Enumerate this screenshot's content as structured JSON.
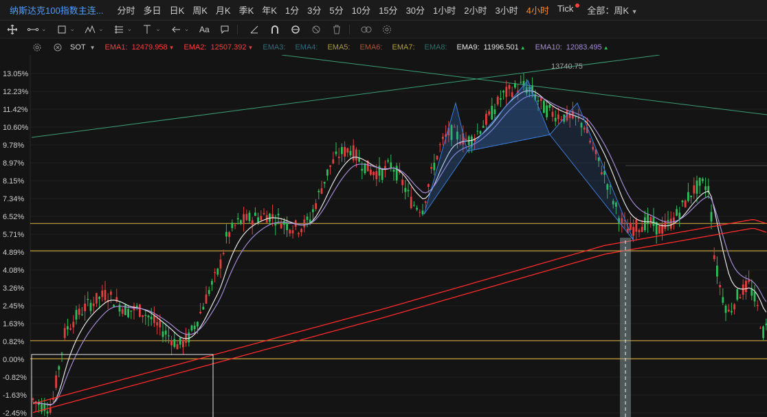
{
  "header": {
    "title": "纳斯达克100指数主连...",
    "timeframes": [
      "分时",
      "多日",
      "日K",
      "周K",
      "月K",
      "季K",
      "年K",
      "1分",
      "3分",
      "5分",
      "10分",
      "15分",
      "30分",
      "1小时",
      "2小时",
      "3小时",
      "4小时",
      "Tick"
    ],
    "active_timeframe": "4小时",
    "period_label": "全部：周K",
    "notification_color": "#ff4040"
  },
  "toolbar": {
    "icons": [
      "crosshair-icon",
      "line-tool-icon",
      "rectangle-tool-icon",
      "pattern-tool-icon",
      "fib-tool-icon",
      "vertical-tool-icon",
      "arrow-tool-icon",
      "text-tool-icon",
      "comment-tool-icon",
      "ruler-icon",
      "magnet-icon",
      "lock-icon",
      "hide-icon",
      "trash-icon",
      "link-icon",
      "settings-icon"
    ]
  },
  "indicator_legend": {
    "name": "SOT",
    "items": [
      {
        "label": "EMA1:",
        "value": "12479.958",
        "color": "#ff3b3b",
        "trend": "down"
      },
      {
        "label": "EMA2:",
        "value": "12507.392",
        "color": "#ff3b3b",
        "trend": "down"
      },
      {
        "label": "EMA3:",
        "value": "",
        "color": "#2e6d7a",
        "trend": ""
      },
      {
        "label": "EMA4:",
        "value": "",
        "color": "#2e6d7a",
        "trend": ""
      },
      {
        "label": "EMA5:",
        "value": "",
        "color": "#a99a3a",
        "trend": ""
      },
      {
        "label": "EMA6:",
        "value": "",
        "color": "#a0583a",
        "trend": ""
      },
      {
        "label": "EMA7:",
        "value": "",
        "color": "#b0a030",
        "trend": ""
      },
      {
        "label": "EMA8:",
        "value": "",
        "color": "#2e6d6a",
        "trend": ""
      },
      {
        "label": "EMA9:",
        "value": "11996.501",
        "color": "#e6e6e6",
        "trend": "up"
      },
      {
        "label": "EMA10:",
        "value": "12083.495",
        "color": "#a58cd9",
        "trend": "up"
      }
    ]
  },
  "chart_data": {
    "type": "candlestick",
    "y_tick_labels": [
      "13.05%",
      "12.23%",
      "11.42%",
      "10.60%",
      "9.78%",
      "8.97%",
      "8.15%",
      "7.34%",
      "6.52%",
      "5.71%",
      "4.89%",
      "4.08%",
      "3.26%",
      "2.45%",
      "1.63%",
      "0.82%",
      "0.00%",
      "-0.82%",
      "-1.63%",
      "-2.45%"
    ],
    "y_range_percent": [
      -2.45,
      13.05
    ],
    "annotation_high": "13740.75",
    "horizontal_levels_percent": [
      6.2,
      4.95,
      0.85,
      0.02
    ],
    "colors": {
      "up": "#e04040",
      "down": "#2fbf5a",
      "ema_fast": "#e6e6e6",
      "ema_slow": "#a58cd9",
      "ema_long": "#ff2a2a",
      "level": "#c8a23a",
      "trendline": "#3aa077",
      "pattern": "#3b7bd6"
    }
  }
}
